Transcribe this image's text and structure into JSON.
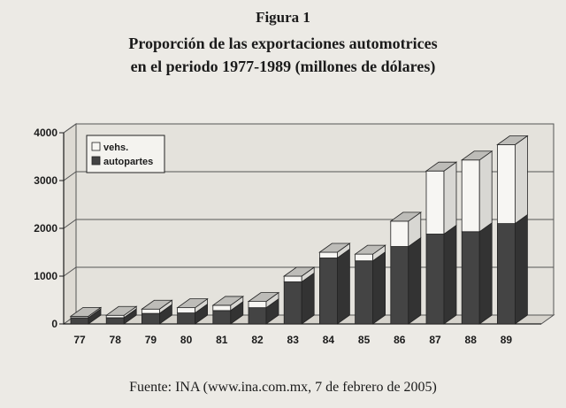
{
  "figure_label": "Figura 1",
  "title_lines": [
    "Proporción de las exportaciones automotrices",
    "en el periodo 1977-1989 (millones de dólares)"
  ],
  "source": "Fuente: INA (www.ina.com.mx, 7 de febrero de 2005)",
  "colors": {
    "vehs": "#f7f6f3",
    "autopartes": "#444444",
    "background": "#eceae5",
    "grid": "#555555"
  },
  "chart_data": {
    "type": "bar",
    "stacked": true,
    "three_d": true,
    "categories": [
      "77",
      "78",
      "79",
      "80",
      "81",
      "82",
      "83",
      "84",
      "85",
      "86",
      "87",
      "88",
      "89"
    ],
    "series": [
      {
        "name": "autopartes",
        "values": [
          130,
          130,
          220,
          230,
          280,
          340,
          880,
          1380,
          1320,
          1620,
          1880,
          1930,
          2100
        ]
      },
      {
        "name": "vehs.",
        "values": [
          30,
          50,
          90,
          110,
          110,
          130,
          120,
          120,
          140,
          530,
          1320,
          1500,
          1650
        ]
      }
    ],
    "legend": [
      "vehs.",
      "autopartes"
    ],
    "legend_position": "top-left",
    "yticks": [
      "0",
      "1000",
      "2000",
      "3000",
      "4000"
    ],
    "ylim": [
      0,
      4000
    ],
    "grid": true
  }
}
